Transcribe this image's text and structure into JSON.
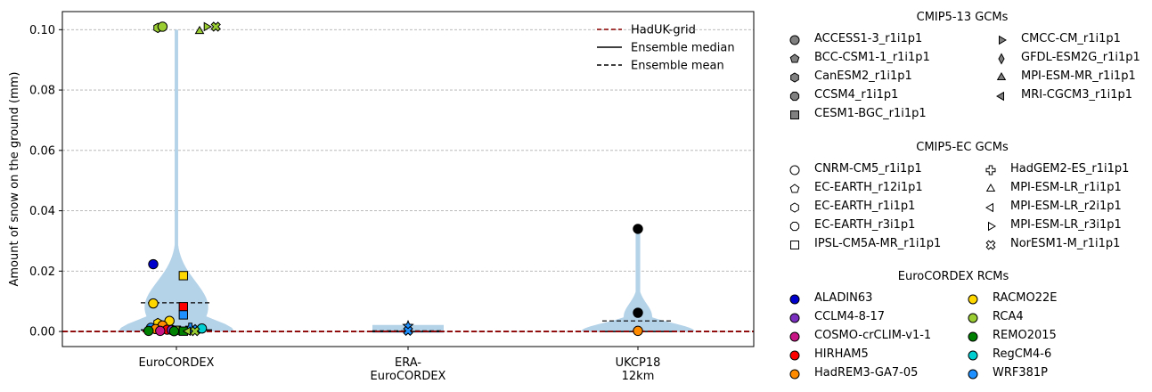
{
  "chart_data": {
    "type": "violin",
    "ylabel": "Amount of snow on the ground (mm)",
    "ylim": [
      -0.005,
      0.106
    ],
    "yticks": [
      0.0,
      0.02,
      0.04,
      0.06,
      0.08,
      0.1
    ],
    "ytick_labels": [
      "0.00",
      "0.02",
      "0.04",
      "0.06",
      "0.08",
      "0.10"
    ],
    "grid": "y-dashed",
    "categories": [
      "EuroCORDEX",
      "ERA-\nEuroCORDEX",
      "UKCP18\n12km"
    ],
    "category_labels": [
      [
        "EuroCORDEX"
      ],
      [
        "ERA-",
        "EuroCORDEX"
      ],
      [
        "UKCP18",
        "12km"
      ]
    ],
    "reference_line": {
      "name": "HadUK-grid",
      "value": 0.0,
      "color": "#8b0000"
    },
    "violins": [
      {
        "category": "EuroCORDEX",
        "min": 0.0,
        "max": 0.1,
        "median": 0.0005,
        "mean": 0.0095,
        "shape": "wide-base-long-tail"
      },
      {
        "category": "ERA-\nEuroCORDEX",
        "min": 0.0,
        "max": 0.002,
        "median": 0.0,
        "mean": 0.0002,
        "shape": "flat"
      },
      {
        "category": "UKCP18\n12km",
        "min": 0.0,
        "max": 0.034,
        "median": 0.0,
        "mean": 0.0035,
        "shape": "base-with-tail"
      }
    ],
    "points": [
      {
        "category": 0,
        "dx": -0.1,
        "y": 0.0223,
        "marker": "circle",
        "color": "#0000cd"
      },
      {
        "category": 0,
        "dx": 0.03,
        "y": 0.0185,
        "marker": "square",
        "color": "#ffd700"
      },
      {
        "category": 0,
        "dx": -0.1,
        "y": 0.0093,
        "marker": "circle",
        "color": "#ffd700"
      },
      {
        "category": 0,
        "dx": 0.03,
        "y": 0.0082,
        "marker": "square",
        "color": "#ff0000"
      },
      {
        "category": 0,
        "dx": 0.03,
        "y": 0.0055,
        "marker": "square",
        "color": "#1e90ff"
      },
      {
        "category": 0,
        "dx": -0.03,
        "y": 0.0035,
        "marker": "circle",
        "color": "#ffd700"
      },
      {
        "category": 0,
        "dx": -0.08,
        "y": 0.0028,
        "marker": "hexagon",
        "color": "#ffd700"
      },
      {
        "category": 0,
        "dx": -0.06,
        "y": 0.002,
        "marker": "circle",
        "color": "#ff8c00"
      },
      {
        "category": 0,
        "dx": -0.11,
        "y": 0.0012,
        "marker": "circle",
        "color": "#1e90ff"
      },
      {
        "category": 0,
        "dx": -0.09,
        "y": 0.0008,
        "marker": "circle",
        "color": "#ff8c00"
      },
      {
        "category": 0,
        "dx": -0.04,
        "y": 0.0006,
        "marker": "circle",
        "color": "#ff0000"
      },
      {
        "category": 0,
        "dx": -0.02,
        "y": 0.0005,
        "marker": "circle",
        "color": "#7b2fbe"
      },
      {
        "category": 0,
        "dx": 0.0,
        "y": 0.0004,
        "marker": "square",
        "color": "#9acd32"
      },
      {
        "category": 0,
        "dx": 0.06,
        "y": 0.0012,
        "marker": "plus",
        "color": "#1e90ff"
      },
      {
        "category": 0,
        "dx": 0.09,
        "y": 0.0008,
        "marker": "x",
        "color": "#1e90ff"
      },
      {
        "category": 0,
        "dx": 0.11,
        "y": 0.001,
        "marker": "circle",
        "color": "#00ced1"
      },
      {
        "category": 0,
        "dx": -0.12,
        "y": 0.0002,
        "marker": "circle",
        "color": "#008000"
      },
      {
        "category": 0,
        "dx": -0.07,
        "y": 0.0002,
        "marker": "circle",
        "color": "#c71585"
      },
      {
        "category": 0,
        "dx": -0.01,
        "y": 0.0001,
        "marker": "circle",
        "color": "#008000"
      },
      {
        "category": 0,
        "dx": 0.03,
        "y": 0.0001,
        "marker": "square",
        "color": "#008000"
      },
      {
        "category": 0,
        "dx": 0.05,
        "y": 0.0001,
        "marker": "triangle-left",
        "color": "#9acd32"
      },
      {
        "category": 0,
        "dx": 0.08,
        "y": 0.0001,
        "marker": "x",
        "color": "#9acd32"
      },
      {
        "category": 0,
        "dx": -0.08,
        "y": 0.1006,
        "marker": "hexagon",
        "color": "#9acd32"
      },
      {
        "category": 0,
        "dx": -0.06,
        "y": 0.101,
        "marker": "circle",
        "color": "#9acd32"
      },
      {
        "category": 0,
        "dx": 0.1,
        "y": 0.0995,
        "marker": "triangle-up",
        "color": "#9acd32"
      },
      {
        "category": 0,
        "dx": 0.13,
        "y": 0.101,
        "marker": "triangle-right",
        "color": "#9acd32"
      },
      {
        "category": 0,
        "dx": 0.17,
        "y": 0.101,
        "marker": "x",
        "color": "#9acd32"
      },
      {
        "category": 1,
        "dx": 0.0,
        "y": 0.0018,
        "marker": "star",
        "color": "#1e90ff"
      },
      {
        "category": 1,
        "dx": 0.0,
        "y": 0.0002,
        "marker": "x",
        "color": "#1e90ff"
      },
      {
        "category": 2,
        "dx": 0.0,
        "y": 0.034,
        "marker": "circle",
        "color": "#000000"
      },
      {
        "category": 2,
        "dx": 0.0,
        "y": 0.0062,
        "marker": "circle",
        "color": "#000000"
      },
      {
        "category": 2,
        "dx": 0.0,
        "y": 0.0002,
        "marker": "circle",
        "color": "#ff8c00"
      }
    ],
    "inline_legend": [
      {
        "label": "HadUK-grid",
        "style": "dashed",
        "color": "#8b0000"
      },
      {
        "label": "Ensemble median",
        "style": "solid",
        "color": "#000000"
      },
      {
        "label": "Ensemble mean",
        "style": "dashed",
        "color": "#000000"
      }
    ],
    "violin_color": "#b4d2e8"
  },
  "legends": {
    "cmip5_13": {
      "title": "CMIP5-13 GCMs",
      "items": [
        {
          "label": "ACCESS1-3_r1i1p1",
          "marker": "circle",
          "color": "#808080"
        },
        {
          "label": "BCC-CSM1-1_r1i1p1",
          "marker": "pentagon",
          "color": "#808080"
        },
        {
          "label": "CanESM2_r1i1p1",
          "marker": "hexagon",
          "color": "#808080"
        },
        {
          "label": "CCSM4_r1i1p1",
          "marker": "octagon",
          "color": "#808080"
        },
        {
          "label": "CESM1-BGC_r1i1p1",
          "marker": "square",
          "color": "#808080"
        },
        {
          "label": "CMCC-CM_r1i1p1",
          "marker": "triangle-right",
          "color": "#808080"
        },
        {
          "label": "GFDL-ESM2G_r1i1p1",
          "marker": "diamond",
          "color": "#808080"
        },
        {
          "label": "MPI-ESM-MR_r1i1p1",
          "marker": "triangle-up",
          "color": "#808080"
        },
        {
          "label": "MRI-CGCM3_r1i1p1",
          "marker": "triangle-left",
          "color": "#808080"
        }
      ]
    },
    "cmip5_ec": {
      "title": "CMIP5-EC GCMs",
      "items": [
        {
          "label": "CNRM-CM5_r1i1p1",
          "marker": "circle",
          "color": "#ffffff"
        },
        {
          "label": "EC-EARTH_r12i1p1",
          "marker": "pentagon",
          "color": "#ffffff"
        },
        {
          "label": "EC-EARTH_r1i1p1",
          "marker": "hexagon",
          "color": "#ffffff"
        },
        {
          "label": "EC-EARTH_r3i1p1",
          "marker": "octagon",
          "color": "#ffffff"
        },
        {
          "label": "IPSL-CM5A-MR_r1i1p1",
          "marker": "square",
          "color": "#ffffff"
        },
        {
          "label": "HadGEM2-ES_r1i1p1",
          "marker": "plus",
          "color": "#ffffff"
        },
        {
          "label": "MPI-ESM-LR_r1i1p1",
          "marker": "triangle-up",
          "color": "#ffffff"
        },
        {
          "label": "MPI-ESM-LR_r2i1p1",
          "marker": "triangle-left",
          "color": "#ffffff"
        },
        {
          "label": "MPI-ESM-LR_r3i1p1",
          "marker": "triangle-right",
          "color": "#ffffff"
        },
        {
          "label": "NorESM1-M_r1i1p1",
          "marker": "x",
          "color": "#ffffff"
        }
      ]
    },
    "rcms": {
      "title": "EuroCORDEX RCMs",
      "items": [
        {
          "label": "ALADIN63",
          "marker": "circle",
          "color": "#0000cd"
        },
        {
          "label": "CCLM4-8-17",
          "marker": "circle",
          "color": "#7b2fbe"
        },
        {
          "label": "COSMO-crCLIM-v1-1",
          "marker": "circle",
          "color": "#c71585"
        },
        {
          "label": "HIRHAM5",
          "marker": "circle",
          "color": "#ff0000"
        },
        {
          "label": "HadREM3-GA7-05",
          "marker": "circle",
          "color": "#ff8c00"
        },
        {
          "label": "RACMO22E",
          "marker": "circle",
          "color": "#ffd700"
        },
        {
          "label": "RCA4",
          "marker": "circle",
          "color": "#9acd32"
        },
        {
          "label": "REMO2015",
          "marker": "circle",
          "color": "#008000"
        },
        {
          "label": "RegCM4-6",
          "marker": "circle",
          "color": "#00ced1"
        },
        {
          "label": "WRF381P",
          "marker": "circle",
          "color": "#1e90ff"
        }
      ]
    }
  }
}
